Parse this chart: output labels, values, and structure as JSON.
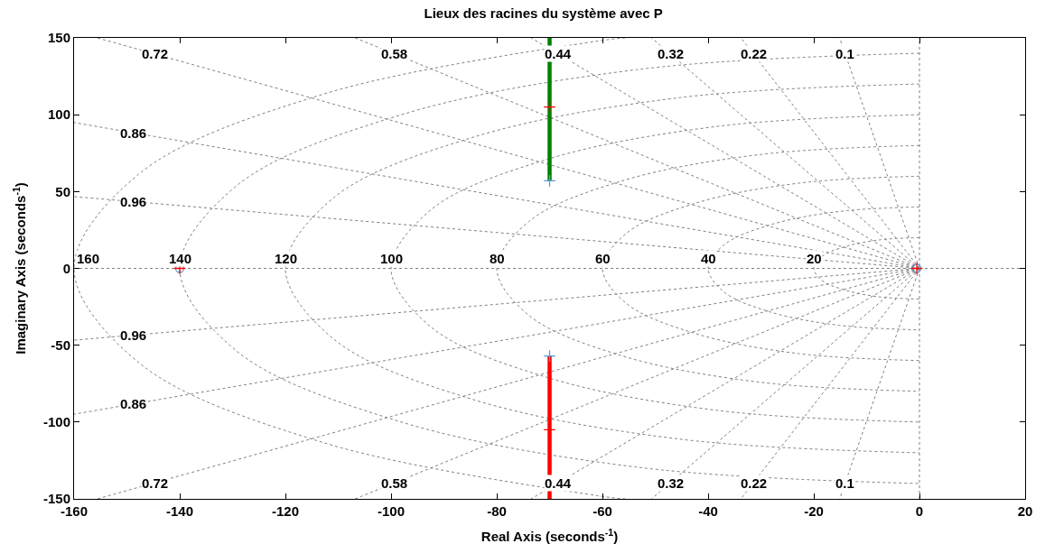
{
  "chart_data": {
    "type": "line",
    "title": "Lieux des racines du système avec P",
    "xlabel": "Real Axis (seconds$^{-1}$)",
    "ylabel": "Imaginary Axis (seconds$^{-1}$)",
    "xlim": [
      -160,
      20
    ],
    "xticks": [
      -160,
      -140,
      -120,
      -100,
      -80,
      -60,
      -40,
      -20,
      0,
      20
    ],
    "ylim": [
      -150,
      150
    ],
    "yticks": [
      -150,
      -100,
      -50,
      0,
      50,
      100,
      150
    ],
    "grid": false,
    "legend": false,
    "series": [
      {
        "color": "#808080",
        "line_style": "dotted",
        "x": [
          -160,
          20
        ],
        "values": [
          0,
          0
        ]
      },
      {
        "color": "#808080",
        "line_style": "dotted",
        "x": [
          0,
          0
        ],
        "values": [
          -150,
          150
        ]
      },
      {
        "name": "0.96",
        "color": "#808080",
        "line_style": "dotted",
        "x": [
          0,
          -160
        ],
        "values": [
          0,
          46.7
        ]
      },
      {
        "name": "0.86",
        "color": "#808080",
        "line_style": "dotted",
        "x": [
          0,
          -160
        ],
        "values": [
          0,
          94.9
        ]
      },
      {
        "name": "0.72",
        "color": "#808080",
        "line_style": "dotted",
        "x": [
          0,
          -155.6
        ],
        "values": [
          0,
          150
        ]
      },
      {
        "name": "0.58",
        "color": "#808080",
        "line_style": "dotted",
        "x": [
          0,
          -106.8
        ],
        "values": [
          0,
          150
        ]
      },
      {
        "name": "0.44",
        "color": "#808080",
        "line_style": "dotted",
        "x": [
          0,
          -73.5
        ],
        "values": [
          0,
          150
        ]
      },
      {
        "name": "0.32",
        "color": "#808080",
        "line_style": "dotted",
        "x": [
          0,
          -50.7
        ],
        "values": [
          0,
          150
        ]
      },
      {
        "name": "0.22",
        "color": "#808080",
        "line_style": "dotted",
        "x": [
          0,
          -33.8
        ],
        "values": [
          0,
          150
        ]
      },
      {
        "name": "0.1",
        "color": "#808080",
        "line_style": "dotted",
        "x": [
          0,
          -15.1
        ],
        "values": [
          0,
          150
        ]
      },
      {
        "name": "0.96",
        "color": "#808080",
        "line_style": "dotted",
        "x": [
          0,
          -160
        ],
        "values": [
          0,
          -46.7
        ]
      },
      {
        "name": "0.86",
        "color": "#808080",
        "line_style": "dotted",
        "x": [
          0,
          -160
        ],
        "values": [
          0,
          -94.9
        ]
      },
      {
        "name": "0.72",
        "color": "#808080",
        "line_style": "dotted",
        "x": [
          0,
          -155.6
        ],
        "values": [
          0,
          -150
        ]
      },
      {
        "name": "0.58",
        "color": "#808080",
        "line_style": "dotted",
        "x": [
          0,
          -106.8
        ],
        "values": [
          0,
          -150
        ]
      },
      {
        "name": "0.44",
        "color": "#808080",
        "line_style": "dotted",
        "x": [
          0,
          -73.5
        ],
        "values": [
          0,
          -150
        ]
      },
      {
        "name": "0.32",
        "color": "#808080",
        "line_style": "dotted",
        "x": [
          0,
          -50.7
        ],
        "values": [
          0,
          -150
        ]
      },
      {
        "name": "0.22",
        "color": "#808080",
        "line_style": "dotted",
        "x": [
          0,
          -33.8
        ],
        "values": [
          0,
          -150
        ]
      },
      {
        "name": "0.1",
        "color": "#808080",
        "line_style": "dotted",
        "x": [
          0,
          -15.1
        ],
        "values": [
          0,
          -150
        ]
      },
      {
        "name": "20",
        "color": "#808080",
        "line_style": "dotted",
        "x": [
          0,
          -7.7,
          -14.1,
          -18.5,
          -20,
          -18.5,
          -14.1,
          -7.7,
          0
        ],
        "values": [
          20,
          18.5,
          14.1,
          7.7,
          0,
          -7.7,
          -14.1,
          -18.5,
          -20
        ]
      },
      {
        "name": "40",
        "color": "#808080",
        "line_style": "dotted",
        "x": [
          0,
          -15.3,
          -28.3,
          -37,
          -40,
          -37,
          -28.3,
          -15.3,
          0
        ],
        "values": [
          40,
          37,
          28.3,
          15.3,
          0,
          -15.3,
          -28.3,
          -37,
          -40
        ]
      },
      {
        "name": "60",
        "color": "#808080",
        "line_style": "dotted",
        "x": [
          0,
          -23,
          -42.4,
          -55.4,
          -60,
          -55.4,
          -42.4,
          -23,
          0
        ],
        "values": [
          60,
          55.4,
          42.4,
          23,
          0,
          -23,
          -42.4,
          -55.4,
          -60
        ]
      },
      {
        "name": "80",
        "color": "#808080",
        "line_style": "dotted",
        "x": [
          0,
          -30.6,
          -56.6,
          -73.9,
          -80,
          -73.9,
          -56.6,
          -30.6,
          0
        ],
        "values": [
          80,
          73.9,
          56.6,
          30.6,
          0,
          -30.6,
          -56.6,
          -73.9,
          -80
        ]
      },
      {
        "name": "100",
        "color": "#808080",
        "line_style": "dotted",
        "x": [
          0,
          -38.3,
          -70.7,
          -92.4,
          -100,
          -92.4,
          -70.7,
          -38.3,
          0
        ],
        "values": [
          100,
          92.4,
          70.7,
          38.3,
          0,
          -38.3,
          -70.7,
          -92.4,
          -100
        ]
      },
      {
        "name": "120",
        "color": "#808080",
        "line_style": "dotted",
        "x": [
          0,
          -45.9,
          -84.9,
          -110.9,
          -120,
          -110.9,
          -84.9,
          -45.9,
          0
        ],
        "values": [
          120,
          110.9,
          84.9,
          45.9,
          0,
          -45.9,
          -84.9,
          -110.9,
          -120
        ]
      },
      {
        "name": "140",
        "color": "#808080",
        "line_style": "dotted",
        "x": [
          0,
          -53.6,
          -99,
          -129.3,
          -140,
          -129.3,
          -99,
          -53.6,
          0
        ],
        "values": [
          140,
          129.3,
          99,
          53.6,
          0,
          -53.6,
          -99,
          -129.3,
          -140
        ]
      },
      {
        "name": "160",
        "color": "#808080",
        "line_style": "dotted",
        "x": [
          -55.7,
          -61.2,
          -113.1,
          -147.8,
          -160,
          -147.8,
          -113.1,
          -61.2,
          -55.7
        ],
        "values": [
          150,
          147.8,
          113.1,
          61.2,
          0,
          -61.2,
          -113.1,
          -147.8,
          -150
        ]
      },
      {
        "color": "#008000",
        "line_style": "solid",
        "x": [
          -70,
          -70
        ],
        "values": [
          57,
          150
        ]
      },
      {
        "color": "#ff0000",
        "line_style": "solid",
        "x": [
          -70,
          -70
        ],
        "values": [
          -57,
          -150
        ]
      },
      {
        "type": "scatter",
        "color": "#5b9bd5",
        "marker": "cross",
        "x": [
          -70,
          -70
        ],
        "values": [
          57,
          -57
        ]
      },
      {
        "type": "scatter",
        "color": "#5b9bd5",
        "marker": "circle",
        "x": [
          -140,
          -0.5
        ],
        "values": [
          0,
          0
        ]
      },
      {
        "type": "scatter",
        "color": "#ff0000",
        "marker": "cross",
        "x": [
          -140,
          -0.5,
          -70,
          -70
        ],
        "values": [
          0,
          0,
          105,
          -105
        ]
      }
    ]
  }
}
